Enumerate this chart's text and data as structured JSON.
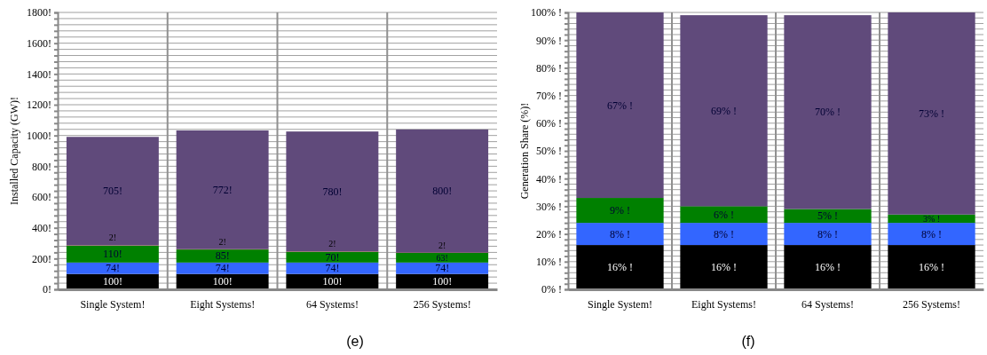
{
  "chart_data": [
    {
      "type": "bar",
      "stacked": true,
      "ylabel": "Installed Capacity (GW)!",
      "categories": [
        "Single System!",
        "Eight Systems!",
        "64 Systems!",
        "256 Systems!"
      ],
      "series": [
        {
          "color": "#000000",
          "values": [
            100,
            100,
            100,
            100
          ],
          "value_labels": [
            "100!",
            "100!",
            "100!",
            "100!"
          ]
        },
        {
          "color": "#3366ff",
          "values": [
            74,
            74,
            74,
            74
          ],
          "value_labels": [
            "74!",
            "74!",
            "74!",
            "74!"
          ]
        },
        {
          "color": "#008000",
          "values": [
            110,
            85,
            70,
            63
          ],
          "value_labels": [
            "110!",
            "85!",
            "70!",
            "63!"
          ]
        },
        {
          "color": "#d03020",
          "values": [
            2,
            2,
            2,
            2
          ],
          "value_labels": [
            "2!",
            "2!",
            "2!",
            "2!"
          ]
        },
        {
          "color": "#604a7b",
          "values": [
            705,
            772,
            780,
            800
          ],
          "value_labels": [
            "705!",
            "772!",
            "780!",
            "800!"
          ]
        }
      ],
      "ylim": [
        0,
        1800
      ],
      "yticks": [
        {
          "value": 0,
          "label": "0!"
        },
        {
          "value": 40,
          "label": null
        },
        {
          "value": 80,
          "label": null
        },
        {
          "value": 120,
          "label": null
        },
        {
          "value": 160,
          "label": null
        },
        {
          "value": 200,
          "label": "200!"
        },
        {
          "value": 240,
          "label": null
        },
        {
          "value": 280,
          "label": null
        },
        {
          "value": 320,
          "label": null
        },
        {
          "value": 360,
          "label": null
        },
        {
          "value": 400,
          "label": "400!"
        },
        {
          "value": 440,
          "label": null
        },
        {
          "value": 480,
          "label": null
        },
        {
          "value": 520,
          "label": null
        },
        {
          "value": 560,
          "label": null
        },
        {
          "value": 600,
          "label": "600!"
        },
        {
          "value": 640,
          "label": null
        },
        {
          "value": 680,
          "label": null
        },
        {
          "value": 720,
          "label": null
        },
        {
          "value": 760,
          "label": null
        },
        {
          "value": 800,
          "label": "800!"
        },
        {
          "value": 840,
          "label": null
        },
        {
          "value": 880,
          "label": null
        },
        {
          "value": 920,
          "label": null
        },
        {
          "value": 960,
          "label": null
        },
        {
          "value": 1000,
          "label": "1000!"
        },
        {
          "value": 1040,
          "label": null
        },
        {
          "value": 1080,
          "label": null
        },
        {
          "value": 1120,
          "label": null
        },
        {
          "value": 1160,
          "label": null
        },
        {
          "value": 1200,
          "label": "1200!"
        },
        {
          "value": 1240,
          "label": null
        },
        {
          "value": 1280,
          "label": null
        },
        {
          "value": 1320,
          "label": null
        },
        {
          "value": 1360,
          "label": null
        },
        {
          "value": 1400,
          "label": "1400!"
        },
        {
          "value": 1440,
          "label": null
        },
        {
          "value": 1480,
          "label": null
        },
        {
          "value": 1520,
          "label": null
        },
        {
          "value": 1560,
          "label": null
        },
        {
          "value": 1600,
          "label": "1600!"
        },
        {
          "value": 1640,
          "label": null
        },
        {
          "value": 1680,
          "label": null
        },
        {
          "value": 1720,
          "label": null
        },
        {
          "value": 1760,
          "label": null
        },
        {
          "value": 1800,
          "label": "1800!"
        }
      ],
      "grid": true,
      "annotations": [
        "(e)"
      ]
    },
    {
      "type": "bar",
      "stacked": true,
      "ylabel": "Generation Share (%)!",
      "categories": [
        "Single System!",
        "Eight Systems!",
        "64 Systems!",
        "256 Systems!"
      ],
      "series": [
        {
          "color": "#000000",
          "values": [
            16,
            16,
            16,
            16
          ],
          "value_labels": [
            "16% !",
            "16% !",
            "16% !",
            "16% !"
          ]
        },
        {
          "color": "#3366ff",
          "values": [
            8,
            8,
            8,
            8
          ],
          "value_labels": [
            "8% !",
            "8% !",
            "8% !",
            "8% !"
          ]
        },
        {
          "color": "#008000",
          "values": [
            9,
            6,
            5,
            3
          ],
          "value_labels": [
            "9% !",
            "6% !",
            "5% !",
            "3% !"
          ]
        },
        {
          "color": "#604a7b",
          "values": [
            67,
            69,
            70,
            73
          ],
          "value_labels": [
            "67% !",
            "69% !",
            "70% !",
            "73% !"
          ]
        }
      ],
      "ylim": [
        0,
        100
      ],
      "yticks": [
        {
          "value": 0,
          "label": "0% !"
        },
        {
          "value": 2,
          "label": null
        },
        {
          "value": 4,
          "label": null
        },
        {
          "value": 6,
          "label": null
        },
        {
          "value": 8,
          "label": null
        },
        {
          "value": 10,
          "label": "10% !"
        },
        {
          "value": 12,
          "label": null
        },
        {
          "value": 14,
          "label": null
        },
        {
          "value": 16,
          "label": null
        },
        {
          "value": 18,
          "label": null
        },
        {
          "value": 20,
          "label": "20% !"
        },
        {
          "value": 22,
          "label": null
        },
        {
          "value": 24,
          "label": null
        },
        {
          "value": 26,
          "label": null
        },
        {
          "value": 28,
          "label": null
        },
        {
          "value": 30,
          "label": "30% !"
        },
        {
          "value": 32,
          "label": null
        },
        {
          "value": 34,
          "label": null
        },
        {
          "value": 36,
          "label": null
        },
        {
          "value": 38,
          "label": null
        },
        {
          "value": 40,
          "label": "40% !"
        },
        {
          "value": 42,
          "label": null
        },
        {
          "value": 44,
          "label": null
        },
        {
          "value": 46,
          "label": null
        },
        {
          "value": 48,
          "label": null
        },
        {
          "value": 50,
          "label": "50% !"
        },
        {
          "value": 52,
          "label": null
        },
        {
          "value": 54,
          "label": null
        },
        {
          "value": 56,
          "label": null
        },
        {
          "value": 58,
          "label": null
        },
        {
          "value": 60,
          "label": "60% !"
        },
        {
          "value": 62,
          "label": null
        },
        {
          "value": 64,
          "label": null
        },
        {
          "value": 66,
          "label": null
        },
        {
          "value": 68,
          "label": null
        },
        {
          "value": 70,
          "label": "70% !"
        },
        {
          "value": 72,
          "label": null
        },
        {
          "value": 74,
          "label": null
        },
        {
          "value": 76,
          "label": null
        },
        {
          "value": 78,
          "label": null
        },
        {
          "value": 80,
          "label": "80% !"
        },
        {
          "value": 82,
          "label": null
        },
        {
          "value": 84,
          "label": null
        },
        {
          "value": 86,
          "label": null
        },
        {
          "value": 88,
          "label": null
        },
        {
          "value": 90,
          "label": "90% !"
        },
        {
          "value": 92,
          "label": null
        },
        {
          "value": 94,
          "label": null
        },
        {
          "value": 96,
          "label": null
        },
        {
          "value": 98,
          "label": null
        },
        {
          "value": 100,
          "label": "100% !"
        }
      ],
      "grid": true,
      "annotations": [
        "(f)"
      ]
    }
  ]
}
